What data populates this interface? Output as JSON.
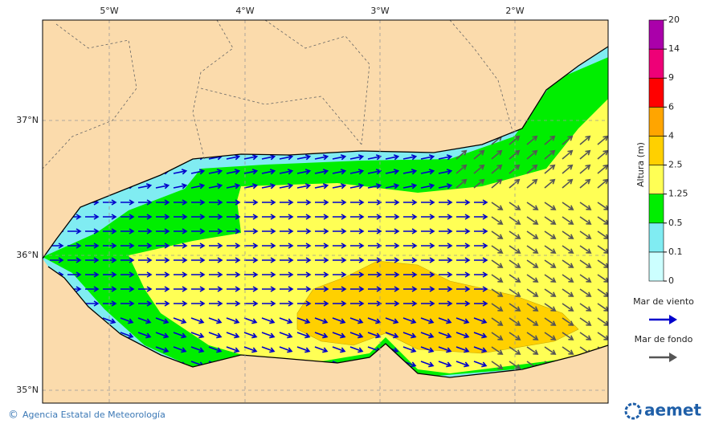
{
  "map": {
    "longitude_labels": [
      "5°W",
      "4°W",
      "3°W",
      "2°W"
    ],
    "latitude_labels": [
      "37°N",
      "36°N",
      "35°N"
    ],
    "colorbar": {
      "title": "Altura (m)",
      "ticks": [
        0,
        0.1,
        0.5,
        1.25,
        2.5,
        4,
        6,
        9,
        14,
        20
      ],
      "colors": [
        "#ccffff",
        "#80ecf2",
        "#00ee00",
        "#ffff55",
        "#ffd000",
        "#ffa500",
        "#ff0000",
        "#ee0077",
        "#aa00aa"
      ]
    },
    "legend": [
      {
        "label": "Mar de viento",
        "color": "#0000cc"
      },
      {
        "label": "Mar de fondo",
        "color": "#555555"
      }
    ],
    "copyright_symbol": "©",
    "footer": "Agencia Estatal de Meteorología",
    "logo": "aemet"
  }
}
